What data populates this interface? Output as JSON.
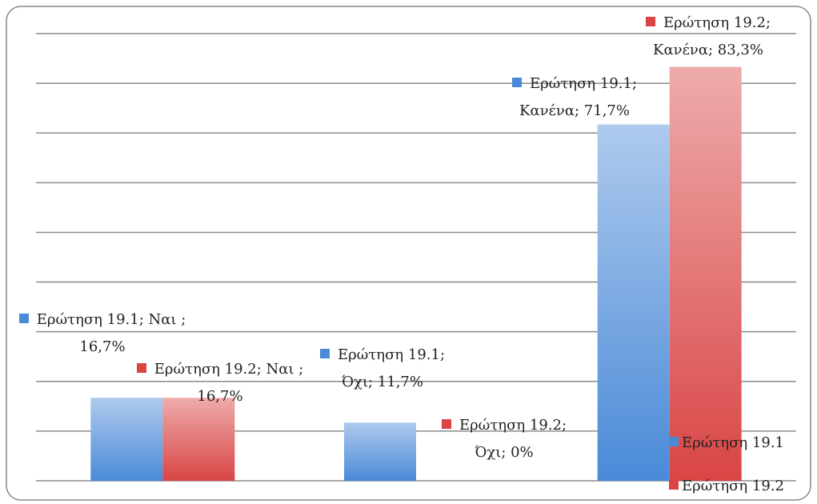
{
  "chart_data": {
    "type": "bar",
    "categories": [
      null,
      null,
      null
    ],
    "series": [
      {
        "name": "Ερώτηση 19.1",
        "color": "#4a8ad8",
        "values": [
          16.7,
          11.7,
          71.7
        ],
        "value_labels": [
          "Ερώτηση 19.1; Ναι ; 16,7%",
          "Ερώτηση 19.1; Όχι; 11,7%",
          "Ερώτηση 19.1; Κανένα; 71,7%"
        ]
      },
      {
        "name": "Ερώτηση 19.2",
        "color": "#d94545",
        "values": [
          16.7,
          0,
          83.3
        ],
        "value_labels": [
          "Ερώτηση 19.2; Ναι ; 16,7%",
          "Ερώτηση 19.2; Όχι; 0%",
          "Ερώτηση 19.2; Κανένα; 83,3%"
        ]
      }
    ],
    "ylim": [
      0,
      90
    ],
    "yticks": [
      0,
      10,
      20,
      30,
      40,
      50,
      60,
      70,
      80,
      90
    ],
    "grid": true,
    "legend": "right"
  }
}
